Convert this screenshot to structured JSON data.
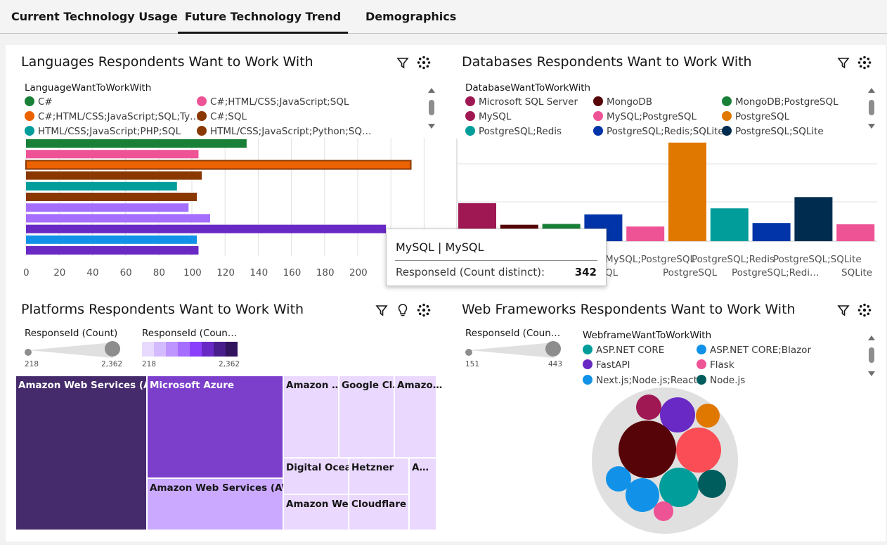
{
  "tabs": [
    {
      "label": "Current Technology Usage"
    },
    {
      "label": "Future Technology Trend"
    },
    {
      "label": "Demographics"
    }
  ],
  "panels": {
    "languages": {
      "title": "Languages Respondents Want to Work With",
      "legend_title": "LanguageWantToWorkWith",
      "legend": [
        {
          "label": "C#",
          "color": "#198038"
        },
        {
          "label": "C#;HTML/CSS;JavaScript;SQL",
          "color": "#ee5396"
        },
        {
          "label": "C#;HTML/CSS;JavaScript;SQL;Ty…",
          "color": "#eb6200"
        },
        {
          "label": "C#;SQL",
          "color": "#8a3800"
        },
        {
          "label": "HTML/CSS;JavaScript;PHP;SQL",
          "color": "#009d9a"
        },
        {
          "label": "HTML/CSS;JavaScript;Python;SQ…",
          "color": "#8a3800"
        }
      ],
      "x_ticks": [
        "0",
        "20",
        "40",
        "60",
        "80",
        "100",
        "120",
        "140",
        "160",
        "180",
        "200",
        "2"
      ]
    },
    "databases": {
      "title": "Databases Respondents Want to Work With",
      "legend_title": "DatabaseWantToWorkWith",
      "legend": [
        {
          "label": "Microsoft SQL Server",
          "color": "#9f1853"
        },
        {
          "label": "MongoDB",
          "color": "#570408"
        },
        {
          "label": "MongoDB;PostgreSQL",
          "color": "#198038"
        },
        {
          "label": "MySQL",
          "color": "#9f1853"
        },
        {
          "label": "MySQL;PostgreSQL",
          "color": "#ee5396"
        },
        {
          "label": "PostgreSQL",
          "color": "#e07800"
        },
        {
          "label": "PostgreSQL;Redis",
          "color": "#009d9a"
        },
        {
          "label": "PostgreSQL;Redis;SQLite",
          "color": "#0034a8"
        },
        {
          "label": "PostgreSQL;SQLite",
          "color": "#002d4f"
        }
      ],
      "x_labels": [
        {
          "l1": "MySQL;PostgreSQL",
          "l2": "QL"
        },
        {
          "l1": "PostgreSQL;Redis",
          "l2": "PostgreSQL"
        },
        {
          "l1": "PostgreSQL;SQLite",
          "l2": "PostgreSQL;Redi…"
        },
        {
          "l1": "",
          "l2": "SQLite"
        }
      ]
    },
    "platforms": {
      "title": "Platforms Respondents Want to Work With",
      "size_legend_title": "ResponseId (Count)",
      "size_min": "218",
      "size_max": "2,362",
      "color_legend_title": "ResponseId (Coun…",
      "color_min": "218",
      "color_max": "2,362",
      "cells": [
        "Amazon Web Services (AWS)",
        "Microsoft Azure",
        "Amazon Web Services (AWS)…",
        "Amazon …",
        "Google Cl…",
        "Amazo…",
        "Digital Ocean",
        "Hetzner",
        "A…",
        "Amazon We…",
        "Cloudflare"
      ]
    },
    "frameworks": {
      "title": "Web Frameworks Respondents Want to Work With",
      "size_legend_title": "ResponseId (Coun…",
      "size_min": "151",
      "size_max": "443",
      "legend_title": "WebframeWantToWorkWith",
      "legend": [
        {
          "label": "ASP.NET CORE",
          "color": "#009d9a"
        },
        {
          "label": "ASP.NET CORE;Blazor",
          "color": "#1192e8"
        },
        {
          "label": "FastAPI",
          "color": "#6929c4"
        },
        {
          "label": "Flask",
          "color": "#ee5396"
        },
        {
          "label": "Next.js;Node.js;React",
          "color": "#1192e8"
        },
        {
          "label": "Node.js",
          "color": "#005d5d"
        }
      ]
    }
  },
  "tooltip": {
    "title": "MySQL | MySQL",
    "label": "ResponseId (Count distinct):",
    "value": "342"
  },
  "chart_data": [
    {
      "type": "bar",
      "orientation": "horizontal",
      "title": "Languages Respondents Want to Work With",
      "values": [
        133,
        104,
        232,
        106,
        91,
        103,
        98,
        111,
        217,
        103,
        104
      ],
      "colors": [
        "#198038",
        "#ee5396",
        "#eb6200",
        "#8a3800",
        "#009d9a",
        "#8a3800",
        "#a56eff",
        "#a56eff",
        "#6929c4",
        "#1192e8",
        "#6929c4"
      ],
      "xlim": [
        0,
        240
      ]
    },
    {
      "type": "bar",
      "title": "Databases Respondents Want to Work With",
      "values": [
        220,
        95,
        100,
        155,
        85,
        570,
        190,
        105,
        255,
        98
      ],
      "colors": [
        "#9f1853",
        "#570408",
        "#198038",
        "#0034a8",
        "#ee5396",
        "#e07800",
        "#009d9a",
        "#0034a8",
        "#002d4f",
        "#ee5396"
      ]
    },
    {
      "type": "bubble",
      "title": "Web Frameworks Respondents Want to Work With",
      "colors": [
        "#9f1853",
        "#6929c4",
        "#e07800",
        "#570408",
        "#fa4d56",
        "#1192e8",
        "#1192e8",
        "#009d9a",
        "#005d5d",
        "#ee5396"
      ]
    }
  ]
}
